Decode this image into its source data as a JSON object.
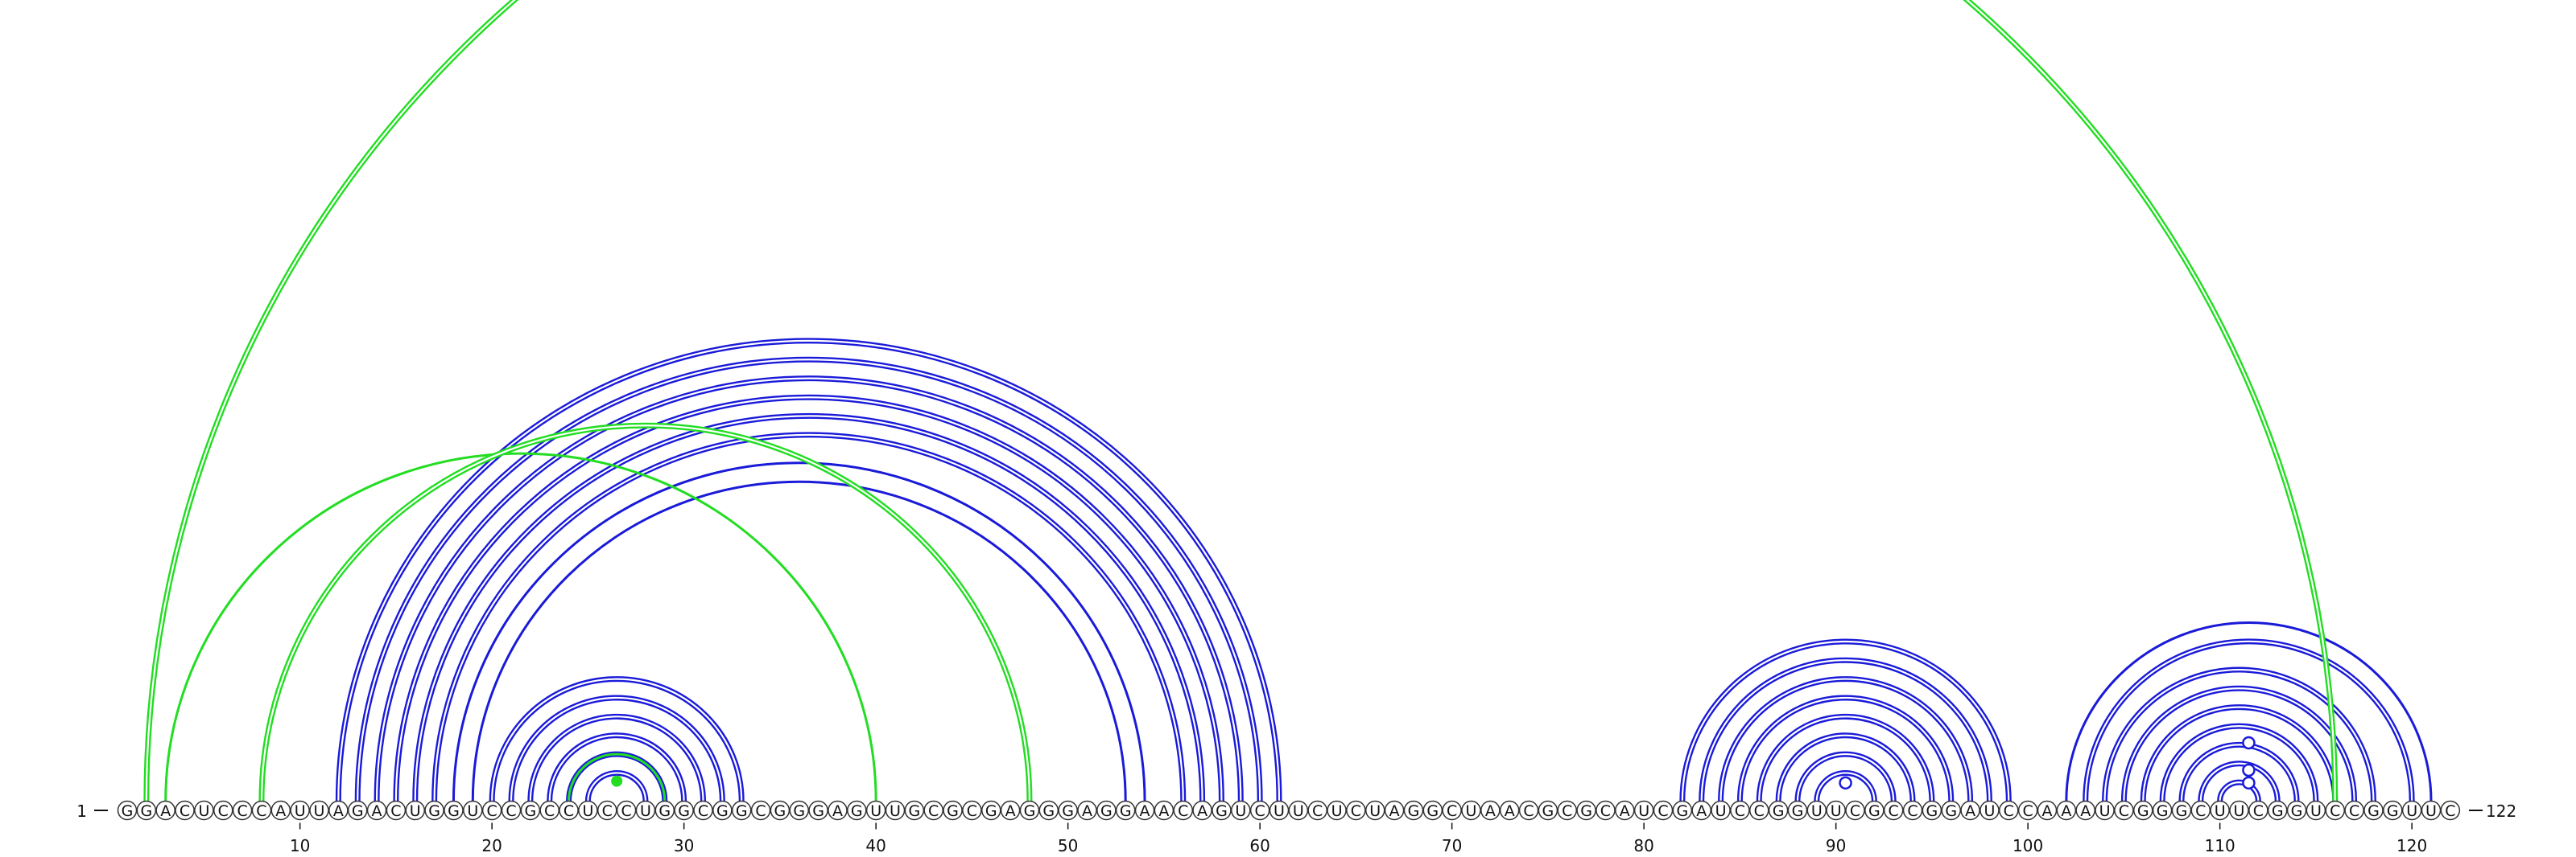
{
  "sequence": {
    "start_label": "1",
    "end_label": "122",
    "bases": "GGACUCCCAUUAGACUGGUCCGCCUCCUGGCGGCGGGAGUUGCGCGAGGGAGGAACAGUCUUCUCUAGGCUAACGCGCAUCGAUCCGGUUCGCCGGAUCCAAAUCGGGCUUCGGUCCGGUUC"
  },
  "ruler": {
    "ticks": [
      10,
      20,
      30,
      40,
      50,
      60,
      70,
      80,
      90,
      100,
      110,
      120
    ]
  },
  "colors": {
    "blue_pair": "#1a1ad9",
    "green_pair": "#22dd22",
    "base_fill": "#ffffff",
    "base_stroke": "#333333",
    "text": "#111111"
  },
  "arcs": {
    "green_double": [
      [
        2,
        116
      ],
      [
        8,
        48
      ]
    ],
    "green_single": [
      [
        3,
        40
      ],
      [
        24,
        29
      ]
    ],
    "blue_double": [
      [
        12,
        61
      ],
      [
        13,
        60
      ],
      [
        14,
        59
      ],
      [
        15,
        58
      ],
      [
        16,
        57
      ],
      [
        17,
        56
      ],
      [
        20,
        33
      ],
      [
        21,
        32
      ],
      [
        22,
        31
      ],
      [
        23,
        30
      ],
      [
        24,
        29
      ],
      [
        25,
        28
      ],
      [
        82,
        99
      ],
      [
        83,
        98
      ],
      [
        84,
        97
      ],
      [
        85,
        96
      ],
      [
        86,
        95
      ],
      [
        87,
        94
      ],
      [
        88,
        93
      ],
      [
        89,
        92
      ],
      [
        103,
        120
      ],
      [
        104,
        118
      ],
      [
        105,
        117
      ],
      [
        106,
        116
      ],
      [
        107,
        115
      ],
      [
        108,
        114
      ],
      [
        109,
        113
      ],
      [
        110,
        112
      ]
    ],
    "blue_single": [
      [
        18,
        54
      ],
      [
        19,
        53
      ],
      [
        102,
        121
      ]
    ]
  },
  "markers": [
    {
      "position": 26.5,
      "level": 0.55,
      "kind": "green-dot"
    },
    {
      "position": 90.5,
      "level": 0.5,
      "kind": "blue-circle"
    },
    {
      "position": 111.5,
      "level": 0.5,
      "kind": "blue-circle"
    },
    {
      "position": 111.5,
      "level": 0.85,
      "kind": "blue-circle"
    },
    {
      "position": 111.5,
      "level": 1.6,
      "kind": "blue-circle"
    }
  ]
}
